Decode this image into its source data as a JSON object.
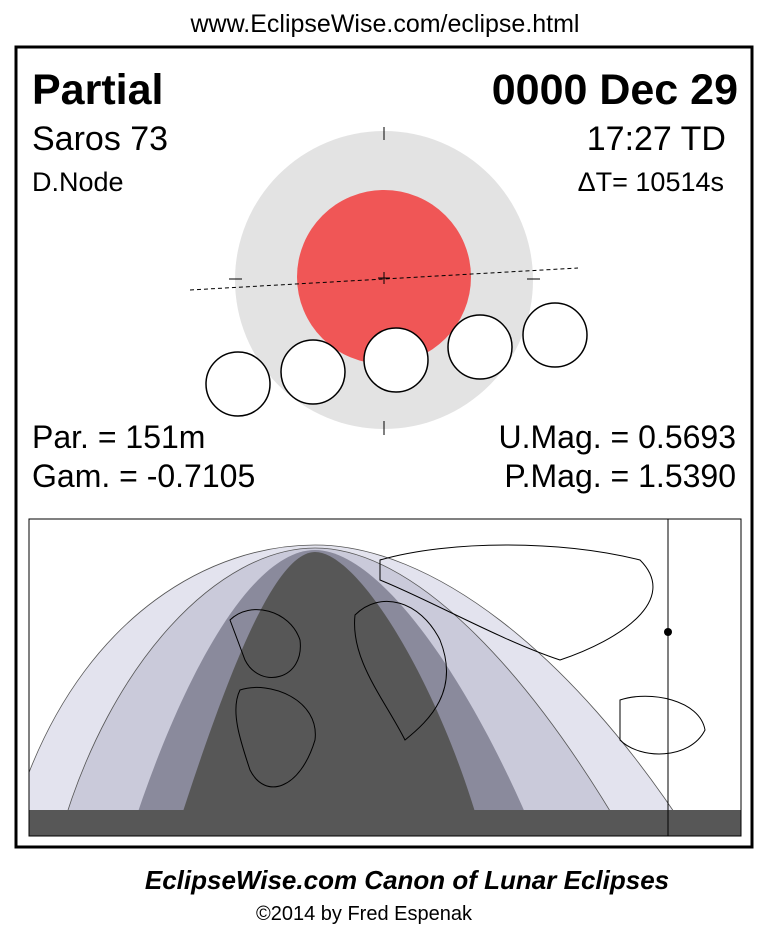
{
  "header": {
    "url": "www.EclipseWise.com/eclipse.html"
  },
  "eclipse": {
    "type": "Partial",
    "date": "0000 Dec 29",
    "saros": "Saros  73",
    "time": "17:27 TD",
    "node": "D.Node",
    "delta_t": "ΔT=  10514s",
    "duration": "Par. = 151m",
    "gamma": "Gam. = -0.7105",
    "umbral_mag": "U.Mag. = 0.5693",
    "penumbral_mag": "P.Mag. = 1.5390"
  },
  "footer": {
    "title": "EclipseWise.com Canon of Lunar Eclipses",
    "copyright": "©2014 by Fred Espenak"
  }
}
